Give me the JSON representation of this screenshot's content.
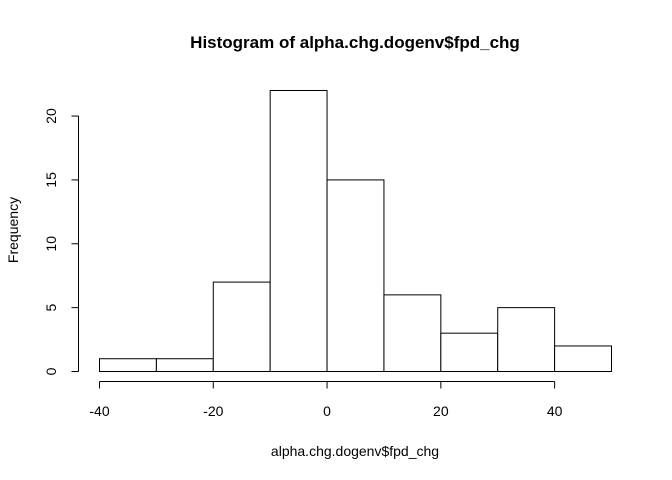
{
  "chart_data": {
    "type": "bar",
    "title": "Histogram of alpha.chg.dogenv$fpd_chg",
    "xlabel": "alpha.chg.dogenv$fpd_chg",
    "ylabel": "Frequency",
    "bins": [
      {
        "from": -40,
        "to": -30,
        "count": 1
      },
      {
        "from": -30,
        "to": -20,
        "count": 1
      },
      {
        "from": -20,
        "to": -10,
        "count": 7
      },
      {
        "from": -10,
        "to": 0,
        "count": 22
      },
      {
        "from": 0,
        "to": 10,
        "count": 15
      },
      {
        "from": 10,
        "to": 20,
        "count": 6
      },
      {
        "from": 20,
        "to": 30,
        "count": 3
      },
      {
        "from": 30,
        "to": 40,
        "count": 5
      },
      {
        "from": 40,
        "to": 50,
        "count": 2
      }
    ],
    "xticks": [
      -40,
      -20,
      0,
      20,
      40
    ],
    "yticks": [
      0,
      5,
      10,
      15,
      20
    ],
    "xlim": [
      -40,
      50
    ],
    "ylim": [
      0,
      22
    ],
    "grid": false,
    "colors": {
      "bar_fill": "#ffffff",
      "bar_stroke": "#000000"
    }
  }
}
